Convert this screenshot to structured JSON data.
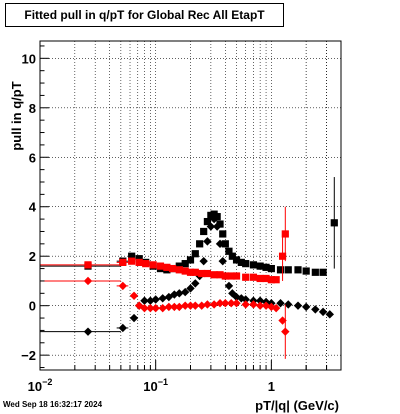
{
  "timestamp": "Wed Sep 18 16:32:17 2024",
  "chart_data": {
    "type": "scatter",
    "title": "Fitted pull in q/pT for Global Rec All EtapT",
    "xlabel": "pT/|q| (GeV/c)",
    "ylabel": "pull in q/pT",
    "xscale": "log",
    "xlim": [
      0.01,
      4.0
    ],
    "ylim": [
      -2.6,
      10.7
    ],
    "grid": true,
    "x_tick_labels": [
      {
        "base": "10",
        "exp": "−2",
        "value": 0.01
      },
      {
        "base": "10",
        "exp": "−1",
        "value": 0.1
      },
      {
        "base": "1",
        "exp": "",
        "value": 1
      }
    ],
    "y_ticks": [
      -2,
      0,
      2,
      4,
      6,
      8,
      10
    ],
    "series": [
      {
        "marker": "square",
        "color": "#000000",
        "points": [
          {
            "x": 0.026,
            "y": 1.6,
            "xerr": [
              0.016,
              0.024
            ]
          },
          {
            "x": 0.052,
            "y": 1.8,
            "xerr": [
              0.006,
              0.006
            ]
          },
          {
            "x": 0.062,
            "y": 2.0,
            "xerr": [
              0.004,
              0.004
            ]
          },
          {
            "x": 0.072,
            "y": 1.9
          },
          {
            "x": 0.082,
            "y": 1.75
          },
          {
            "x": 0.095,
            "y": 1.6
          },
          {
            "x": 0.11,
            "y": 1.5
          },
          {
            "x": 0.125,
            "y": 1.45
          },
          {
            "x": 0.14,
            "y": 1.5
          },
          {
            "x": 0.16,
            "y": 1.6
          },
          {
            "x": 0.18,
            "y": 1.7
          },
          {
            "x": 0.2,
            "y": 1.85
          },
          {
            "x": 0.22,
            "y": 2.1
          },
          {
            "x": 0.24,
            "y": 2.5
          },
          {
            "x": 0.26,
            "y": 3.0
          },
          {
            "x": 0.28,
            "y": 3.4
          },
          {
            "x": 0.3,
            "y": 3.65
          },
          {
            "x": 0.32,
            "y": 3.7
          },
          {
            "x": 0.34,
            "y": 3.6
          },
          {
            "x": 0.36,
            "y": 3.3
          },
          {
            "x": 0.38,
            "y": 2.9
          },
          {
            "x": 0.4,
            "y": 2.5
          },
          {
            "x": 0.43,
            "y": 2.2
          },
          {
            "x": 0.46,
            "y": 2.0
          },
          {
            "x": 0.5,
            "y": 1.85
          },
          {
            "x": 0.55,
            "y": 1.75
          },
          {
            "x": 0.6,
            "y": 1.7
          },
          {
            "x": 0.7,
            "y": 1.65
          },
          {
            "x": 0.8,
            "y": 1.6
          },
          {
            "x": 0.9,
            "y": 1.55
          },
          {
            "x": 1.0,
            "y": 1.5
          },
          {
            "x": 1.2,
            "y": 1.45
          },
          {
            "x": 1.4,
            "y": 1.45
          },
          {
            "x": 1.7,
            "y": 1.45
          },
          {
            "x": 2.0,
            "y": 1.4
          },
          {
            "x": 2.4,
            "y": 1.35
          },
          {
            "x": 2.8,
            "y": 1.35
          },
          {
            "x": 3.5,
            "y": 3.35,
            "yerr": 1.85
          }
        ]
      },
      {
        "marker": "diamond",
        "color": "#000000",
        "points": [
          {
            "x": 0.026,
            "y": -1.05,
            "xerr": [
              0.016,
              0.024
            ]
          },
          {
            "x": 0.052,
            "y": -0.9,
            "xerr": [
              0.006,
              0.006
            ]
          },
          {
            "x": 0.065,
            "y": -0.5
          },
          {
            "x": 0.072,
            "y": 0.0
          },
          {
            "x": 0.08,
            "y": 0.2
          },
          {
            "x": 0.09,
            "y": 0.2
          },
          {
            "x": 0.1,
            "y": 0.25
          },
          {
            "x": 0.115,
            "y": 0.3
          },
          {
            "x": 0.13,
            "y": 0.35
          },
          {
            "x": 0.145,
            "y": 0.45
          },
          {
            "x": 0.16,
            "y": 0.5
          },
          {
            "x": 0.18,
            "y": 0.55
          },
          {
            "x": 0.2,
            "y": 0.7
          },
          {
            "x": 0.22,
            "y": 0.9
          },
          {
            "x": 0.24,
            "y": 1.2
          },
          {
            "x": 0.26,
            "y": 1.8
          },
          {
            "x": 0.28,
            "y": 2.6
          },
          {
            "x": 0.3,
            "y": 3.2
          },
          {
            "x": 0.32,
            "y": 3.5
          },
          {
            "x": 0.34,
            "y": 3.2
          },
          {
            "x": 0.36,
            "y": 2.5
          },
          {
            "x": 0.38,
            "y": 1.8
          },
          {
            "x": 0.4,
            "y": 1.2
          },
          {
            "x": 0.43,
            "y": 0.8
          },
          {
            "x": 0.46,
            "y": 0.5
          },
          {
            "x": 0.5,
            "y": 0.35
          },
          {
            "x": 0.55,
            "y": 0.3
          },
          {
            "x": 0.6,
            "y": 0.25
          },
          {
            "x": 0.7,
            "y": 0.2
          },
          {
            "x": 0.8,
            "y": 0.2
          },
          {
            "x": 0.9,
            "y": 0.15
          },
          {
            "x": 1.0,
            "y": 0.1
          },
          {
            "x": 1.2,
            "y": 0.1
          },
          {
            "x": 1.4,
            "y": 0.05
          },
          {
            "x": 1.7,
            "y": 0.0
          },
          {
            "x": 2.0,
            "y": -0.05
          },
          {
            "x": 2.4,
            "y": -0.15
          },
          {
            "x": 2.8,
            "y": -0.25
          },
          {
            "x": 3.2,
            "y": -0.35
          }
        ]
      },
      {
        "marker": "square",
        "color": "#ff0000",
        "points": [
          {
            "x": 0.026,
            "y": 1.65,
            "xerr": [
              0.016,
              0.024
            ]
          },
          {
            "x": 0.052,
            "y": 1.75,
            "xerr": [
              0.006,
              0.006
            ]
          },
          {
            "x": 0.062,
            "y": 1.8,
            "xerr": [
              0.004,
              0.004
            ]
          },
          {
            "x": 0.072,
            "y": 1.75
          },
          {
            "x": 0.082,
            "y": 1.7
          },
          {
            "x": 0.095,
            "y": 1.65
          },
          {
            "x": 0.11,
            "y": 1.6
          },
          {
            "x": 0.125,
            "y": 1.55
          },
          {
            "x": 0.14,
            "y": 1.5
          },
          {
            "x": 0.16,
            "y": 1.45
          },
          {
            "x": 0.18,
            "y": 1.4
          },
          {
            "x": 0.2,
            "y": 1.35
          },
          {
            "x": 0.22,
            "y": 1.35
          },
          {
            "x": 0.25,
            "y": 1.3
          },
          {
            "x": 0.28,
            "y": 1.3
          },
          {
            "x": 0.32,
            "y": 1.25
          },
          {
            "x": 0.36,
            "y": 1.25
          },
          {
            "x": 0.4,
            "y": 1.2
          },
          {
            "x": 0.45,
            "y": 1.2
          },
          {
            "x": 0.5,
            "y": 1.2
          },
          {
            "x": 0.6,
            "y": 1.15
          },
          {
            "x": 0.7,
            "y": 1.15
          },
          {
            "x": 0.8,
            "y": 1.1
          },
          {
            "x": 0.9,
            "y": 1.1
          },
          {
            "x": 1.0,
            "y": 1.05
          },
          {
            "x": 1.1,
            "y": 1.05
          },
          {
            "x": 1.25,
            "y": 2.0,
            "yerr": 1.0
          },
          {
            "x": 1.32,
            "y": 2.9,
            "yerr": 1.1
          }
        ]
      },
      {
        "marker": "diamond",
        "color": "#ff0000",
        "points": [
          {
            "x": 0.026,
            "y": 1.0,
            "xerr": [
              0.016,
              0.024
            ]
          },
          {
            "x": 0.052,
            "y": 0.8,
            "xerr": [
              0.006,
              0.006
            ]
          },
          {
            "x": 0.065,
            "y": 0.4
          },
          {
            "x": 0.072,
            "y": 0.0
          },
          {
            "x": 0.08,
            "y": -0.1
          },
          {
            "x": 0.09,
            "y": -0.1
          },
          {
            "x": 0.1,
            "y": -0.1
          },
          {
            "x": 0.115,
            "y": -0.1
          },
          {
            "x": 0.13,
            "y": -0.05
          },
          {
            "x": 0.145,
            "y": -0.05
          },
          {
            "x": 0.16,
            "y": -0.05
          },
          {
            "x": 0.18,
            "y": 0.0
          },
          {
            "x": 0.2,
            "y": 0.0
          },
          {
            "x": 0.22,
            "y": 0.0
          },
          {
            "x": 0.25,
            "y": 0.0
          },
          {
            "x": 0.28,
            "y": 0.05
          },
          {
            "x": 0.32,
            "y": 0.05
          },
          {
            "x": 0.36,
            "y": 0.1
          },
          {
            "x": 0.4,
            "y": 0.1
          },
          {
            "x": 0.45,
            "y": 0.1
          },
          {
            "x": 0.5,
            "y": 0.1
          },
          {
            "x": 0.6,
            "y": 0.05
          },
          {
            "x": 0.7,
            "y": 0.05
          },
          {
            "x": 0.8,
            "y": 0.0
          },
          {
            "x": 0.9,
            "y": 0.0
          },
          {
            "x": 1.0,
            "y": -0.05
          },
          {
            "x": 1.1,
            "y": -0.1
          },
          {
            "x": 1.25,
            "y": -0.6
          },
          {
            "x": 1.32,
            "y": -1.05,
            "yerr": 1.1
          }
        ]
      }
    ]
  }
}
